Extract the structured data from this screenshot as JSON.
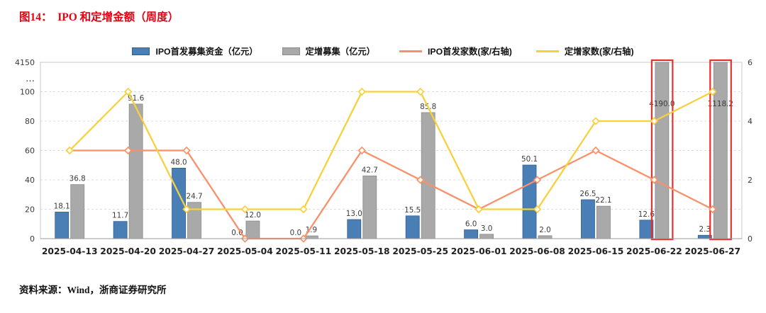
{
  "page": {
    "title": "图14：  IPO 和定增金额（周度）",
    "source": "资料来源：Wind，浙商证券研究所"
  },
  "chart_data": {
    "type": "bar",
    "subtype": "combo-bar-line-dual-axis",
    "title": "图14：  IPO 和定增金额（周度）",
    "categories": [
      "2025-04-13",
      "2025-04-20",
      "2025-04-27",
      "2025-05-04",
      "2025-05-11",
      "2025-05-18",
      "2025-05-25",
      "2025-06-01",
      "2025-06-08",
      "2025-06-15",
      "2025-06-22",
      "2025-06-27"
    ],
    "series": [
      {
        "name": "IPO首发募集资金（亿元）",
        "type": "bar",
        "axis": "left",
        "color": "#4a7fb5",
        "border": "#2e5f93",
        "values": [
          18.1,
          11.7,
          48.0,
          0.0,
          0.0,
          13.0,
          15.5,
          6.0,
          50.1,
          26.5,
          12.6,
          2.3
        ]
      },
      {
        "name": "定增募集（亿元）",
        "type": "bar",
        "axis": "left",
        "color": "#a9a9a9",
        "border": "#8a8a8a",
        "values": [
          36.8,
          91.6,
          24.7,
          12.0,
          1.9,
          42.7,
          85.8,
          3.0,
          2.0,
          22.1,
          4190.0,
          1118.2
        ]
      },
      {
        "name": "IPO首发家数(家/右轴)",
        "type": "line",
        "axis": "right",
        "color": "#f8906a",
        "values": [
          3,
          3,
          3,
          0,
          0,
          3,
          2,
          1,
          2,
          3,
          2,
          1
        ]
      },
      {
        "name": "定增家数(家/右轴)",
        "type": "line",
        "axis": "right",
        "color": "#f7d03e",
        "values": [
          3,
          5,
          1,
          1,
          1,
          5,
          5,
          1,
          1,
          4,
          4,
          5
        ]
      }
    ],
    "left_axis": {
      "ticks": [
        0,
        20,
        40,
        60,
        80,
        100
      ],
      "break_label": "4150",
      "break_marker": "…"
    },
    "right_axis": {
      "ticks": [
        0,
        2,
        4,
        6
      ],
      "range": [
        0,
        6
      ]
    },
    "highlights": {
      "indices": [
        10,
        11
      ],
      "color": "#e8312a"
    },
    "grid": "horizontal-dashed",
    "legend_position": "top"
  }
}
